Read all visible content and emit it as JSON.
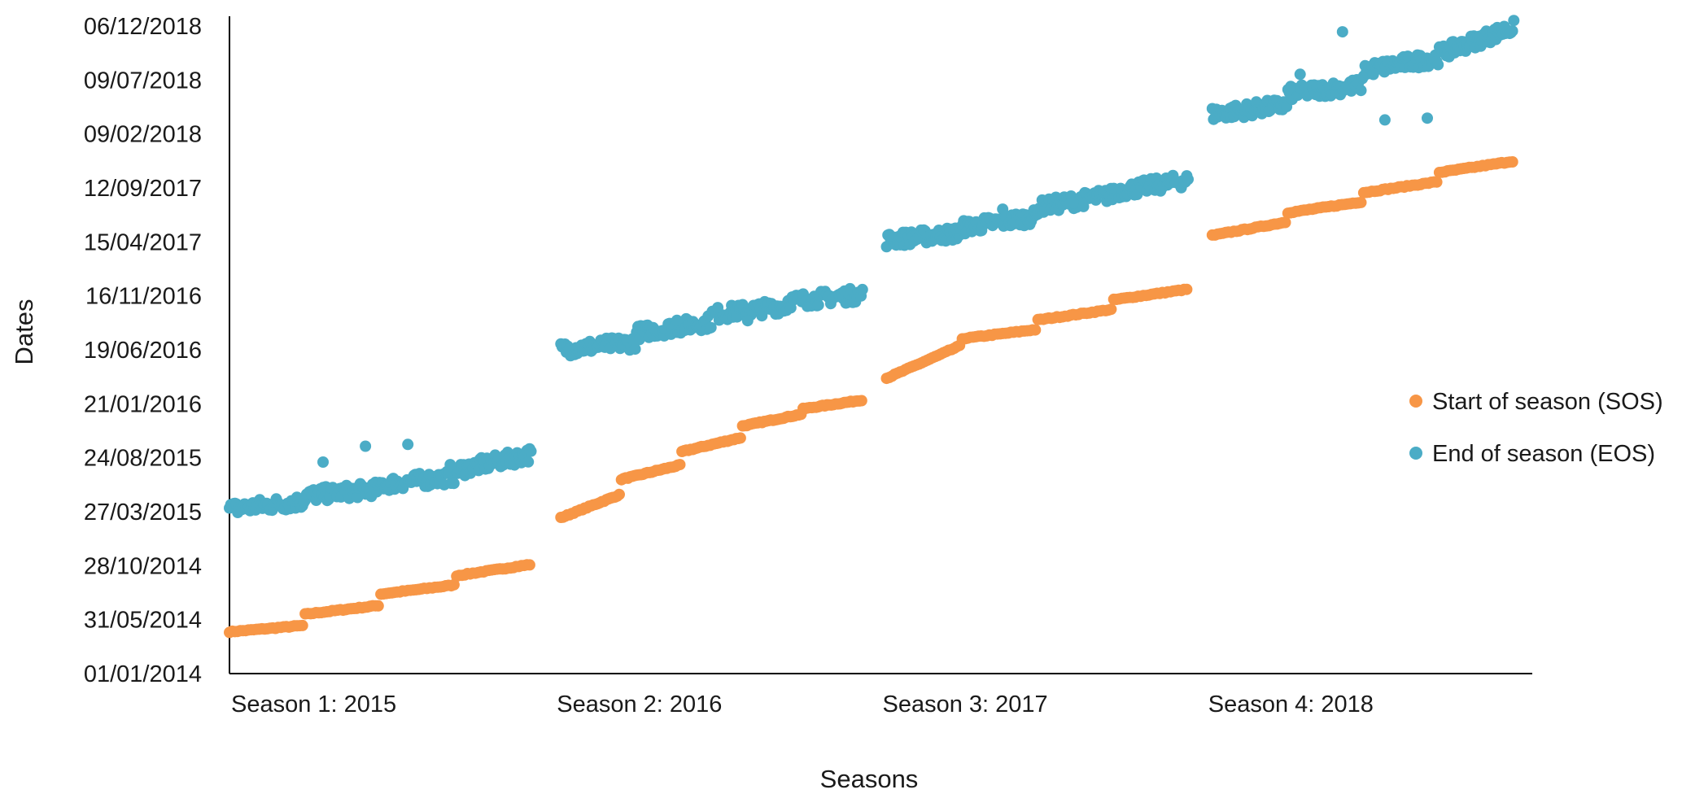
{
  "chart_data": {
    "type": "scatter",
    "title": "",
    "xlabel": "Seasons",
    "ylabel": "Dates",
    "grid": false,
    "legend_position": "right",
    "x_tick_labels": [
      "Season 1: 2015",
      "Season 2: 2016",
      "Season 3: 2017",
      "Season 4: 2018"
    ],
    "y_tick_labels": [
      "01/01/2014",
      "31/05/2014",
      "28/10/2014",
      "27/03/2015",
      "24/08/2015",
      "21/01/2016",
      "19/06/2016",
      "16/11/2016",
      "15/04/2017",
      "12/09/2017",
      "09/02/2018",
      "09/07/2018",
      "06/12/2018"
    ],
    "y_ticks": [
      "2014-01-01",
      "2014-05-31",
      "2014-10-28",
      "2015-03-27",
      "2015-08-24",
      "2016-01-21",
      "2016-06-19",
      "2016-11-16",
      "2017-04-15",
      "2017-09-12",
      "2018-02-09",
      "2018-07-09",
      "2018-12-06"
    ],
    "ylim": [
      "2014-01-01",
      "2018-12-06"
    ],
    "series": [
      {
        "name": "Start of season (SOS)",
        "color": "#f79646",
        "segments": [
          {
            "season": "Season 1: 2015",
            "points": [
              [
                "2014-04-27",
                "2014-05-15"
              ],
              [
                "2014-06-15",
                "2014-07-10"
              ],
              [
                "2014-08-10",
                "2014-09-05"
              ],
              [
                "2014-09-30",
                "2014-11-01"
              ]
            ]
          },
          {
            "season": "Season 2: 2016",
            "points": [
              [
                "2015-03-10",
                "2015-05-15"
              ],
              [
                "2015-06-25",
                "2015-08-05"
              ],
              [
                "2015-09-10",
                "2015-10-20"
              ],
              [
                "2015-11-20",
                "2015-12-24"
              ],
              [
                "2016-01-07",
                "2016-02-01"
              ]
            ]
          },
          {
            "season": "Season 3: 2017",
            "points": [
              [
                "2016-04-01",
                "2016-07-03"
              ],
              [
                "2016-07-20",
                "2016-08-15"
              ],
              [
                "2016-09-10",
                "2016-10-10"
              ],
              [
                "2016-11-05",
                "2016-12-05"
              ]
            ]
          },
          {
            "season": "Season 4: 2018",
            "points": [
              [
                "2017-05-03",
                "2017-06-10"
              ],
              [
                "2017-07-05",
                "2017-08-05"
              ],
              [
                "2017-08-30",
                "2017-09-30"
              ],
              [
                "2017-10-25",
                "2017-11-26"
              ]
            ]
          }
        ]
      },
      {
        "name": "End of season (EOS)",
        "color": "#4bacc6",
        "segments": [
          {
            "season": "Season 1: 2015",
            "points": [
              [
                "2015-04-03",
                "2015-04-25"
              ],
              [
                "2015-05-10",
                "2015-05-30"
              ],
              [
                "2015-06-10",
                "2015-07-03"
              ],
              [
                "2015-07-20",
                "2015-09-03"
              ]
            ],
            "outliers": [
              "2015-08-12",
              "2015-09-25",
              "2015-09-30",
              "2015-08-05"
            ]
          },
          {
            "season": "Season 2: 2016",
            "points": [
              [
                "2016-06-20",
                "2016-07-10"
              ],
              [
                "2016-08-05",
                "2016-09-05"
              ],
              [
                "2016-09-25",
                "2016-10-20"
              ],
              [
                "2016-11-01",
                "2016-11-20"
              ]
            ],
            "outliers": [
              "2016-09-09",
              "2016-09-08"
            ]
          },
          {
            "season": "Season 3: 2017",
            "points": [
              [
                "2017-04-20",
                "2017-05-10"
              ],
              [
                "2017-05-25",
                "2017-06-25"
              ],
              [
                "2017-07-20",
                "2017-08-25"
              ],
              [
                "2017-09-01",
                "2017-10-05"
              ]
            ],
            "outliers": [
              "2017-07-15",
              "2017-08-01"
            ]
          },
          {
            "season": "Season 4: 2018",
            "points": [
              [
                "2018-04-05",
                "2018-05-01"
              ],
              [
                "2018-06-01",
                "2018-06-25"
              ],
              [
                "2018-08-05",
                "2018-09-10"
              ],
              [
                "2018-09-20",
                "2018-12-04"
              ]
            ],
            "outliers": [
              "2018-07-25",
              "2018-11-20",
              "2018-03-20",
              "2018-03-25"
            ]
          }
        ]
      }
    ]
  }
}
